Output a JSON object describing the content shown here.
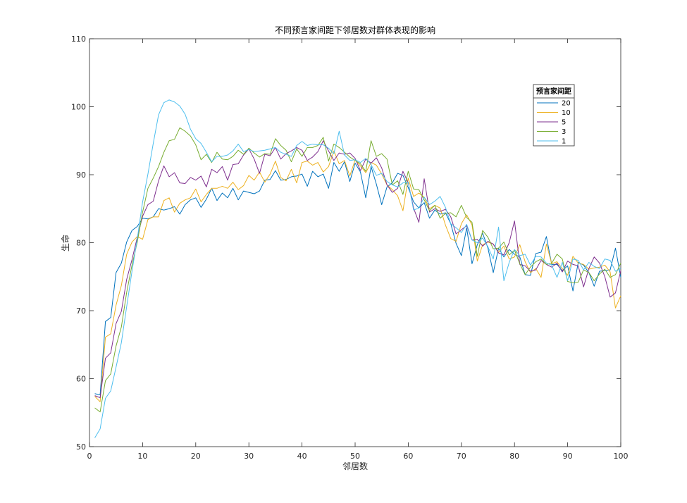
{
  "chart_data": {
    "type": "line",
    "title": "不同预言家间距下邻居数对群体表现的影响",
    "xlabel": "邻居数",
    "ylabel": "生命",
    "xlim": [
      0,
      100
    ],
    "ylim": [
      50,
      110
    ],
    "xticks": [
      0,
      10,
      20,
      30,
      40,
      50,
      60,
      70,
      80,
      90,
      100
    ],
    "yticks": [
      50,
      60,
      70,
      80,
      90,
      100,
      110
    ],
    "grid": false,
    "legend": {
      "title": "预言家间距",
      "placement": "top-right"
    },
    "series_x_start": 1,
    "series": [
      {
        "name": "20",
        "color": "#0072BD",
        "values": [
          57.8,
          57.6,
          68.4,
          69.0,
          75.6,
          77.0,
          80.1,
          81.8,
          82.4,
          83.6,
          83.5,
          83.8,
          85.0,
          84.8,
          85.0,
          85.3,
          84.2,
          85.6,
          86.3,
          86.6,
          85.2,
          86.4,
          88.0,
          86.2,
          87.3,
          86.6,
          88.0,
          86.3,
          87.6,
          87.4,
          87.2,
          87.6,
          89.2,
          89.3,
          90.6,
          89.2,
          89.3,
          89.7,
          89.8,
          90.1,
          88.3,
          90.5,
          89.7,
          90.1,
          88.0,
          91.8,
          90.5,
          91.9,
          89.0,
          91.7,
          90.4,
          86.6,
          91.2,
          88.6,
          85.6,
          88.2,
          88.8,
          90.2,
          89.9,
          88.1,
          86.0,
          85.1,
          85.9,
          83.6,
          84.8,
          84.2,
          84.4,
          82.8,
          79.9,
          78.1,
          82.2,
          76.9,
          79.7,
          81.4,
          79.2,
          75.6,
          79.2,
          77.9,
          79.0,
          78.3,
          77.9,
          75.3,
          75.2,
          78.4,
          78.6,
          80.9,
          76.8,
          76.8,
          75.9,
          76.6,
          72.9,
          77.1,
          76.7,
          75.6,
          73.6,
          75.8,
          75.9,
          76.0,
          79.2,
          74.9
        ]
      },
      {
        "name": "10",
        "color": "#EDB120",
        "values": [
          57.4,
          56.6,
          66.1,
          66.6,
          70.8,
          73.7,
          78.3,
          80.1,
          80.9,
          80.5,
          83.4,
          83.8,
          83.8,
          86.2,
          86.6,
          84.5,
          85.8,
          86.3,
          86.6,
          87.9,
          86.0,
          87.1,
          88.0,
          88.0,
          88.3,
          88.0,
          88.9,
          87.8,
          88.4,
          89.9,
          89.2,
          90.4,
          88.9,
          90.1,
          92.0,
          89.6,
          89.1,
          90.8,
          88.8,
          91.8,
          92.0,
          91.4,
          91.8,
          90.4,
          91.2,
          93.5,
          91.6,
          92.1,
          89.8,
          92.2,
          91.3,
          90.3,
          91.8,
          91.4,
          90.1,
          88.5,
          87.8,
          86.9,
          84.7,
          89.5,
          86.8,
          87.3,
          86.7,
          85.0,
          85.5,
          85.1,
          82.6,
          80.6,
          80.2,
          82.8,
          84.1,
          82.6,
          77.3,
          79.7,
          80.1,
          79.8,
          78.6,
          79.5,
          77.6,
          77.9,
          79.7,
          77.2,
          75.6,
          76.2,
          74.9,
          79.8,
          76.9,
          77.2,
          76.2,
          75.2,
          78.0,
          77.0,
          76.8,
          76.1,
          76.3,
          76.4,
          76.7,
          75.7,
          70.4,
          72.2
        ]
      },
      {
        "name": "5",
        "color": "#7E2F8E",
        "values": [
          57.5,
          57.2,
          63.0,
          63.8,
          68.1,
          69.9,
          74.6,
          77.5,
          80.8,
          83.9,
          85.6,
          86.1,
          89.1,
          91.3,
          89.7,
          90.3,
          88.8,
          88.7,
          89.6,
          89.2,
          89.8,
          88.2,
          90.8,
          90.3,
          91.2,
          89.2,
          91.5,
          91.6,
          92.9,
          93.8,
          92.3,
          90.2,
          93.0,
          92.8,
          94.0,
          92.3,
          93.1,
          93.5,
          94.0,
          93.6,
          92.1,
          92.6,
          93.4,
          95.0,
          93.5,
          92.1,
          93.2,
          93.0,
          93.2,
          92.4,
          90.6,
          92.3,
          91.7,
          92.5,
          91.0,
          88.5,
          87.4,
          88.0,
          90.5,
          88.8,
          85.1,
          83.0,
          89.4,
          84.5,
          85.0,
          84.6,
          84.9,
          83.8,
          81.3,
          81.9,
          82.5,
          80.4,
          80.5,
          79.5,
          80.2,
          79.8,
          78.5,
          78.2,
          80.0,
          83.2,
          76.8,
          76.6,
          75.8,
          76.0,
          77.4,
          76.8,
          76.4,
          77.0,
          75.7,
          77.3,
          76.8,
          76.6,
          73.5,
          76.2,
          77.9,
          77.0,
          75.0,
          72.0,
          72.6,
          75.9
        ]
      },
      {
        "name": "3",
        "color": "#77AC30",
        "values": [
          55.7,
          55.1,
          59.7,
          60.7,
          64.8,
          67.6,
          72.7,
          76.7,
          80.1,
          84.5,
          88.0,
          89.5,
          91.2,
          93.3,
          95.0,
          95.2,
          96.9,
          96.4,
          95.7,
          94.4,
          92.2,
          93.0,
          91.8,
          93.3,
          92.3,
          92.2,
          92.7,
          93.6,
          93.0,
          93.9,
          93.2,
          92.6,
          93.1,
          93.0,
          95.3,
          94.3,
          93.6,
          91.9,
          93.8,
          92.7,
          94.0,
          94.0,
          94.3,
          95.5,
          92.0,
          94.5,
          94.0,
          93.3,
          92.6,
          92.1,
          91.6,
          90.5,
          95.0,
          92.7,
          93.1,
          92.3,
          88.5,
          89.1,
          87.1,
          90.5,
          87.9,
          87.8,
          86.3,
          84.7,
          85.5,
          83.6,
          84.3,
          84.4,
          83.8,
          85.5,
          83.7,
          83.0,
          78.0,
          81.8,
          80.8,
          79.1,
          79.2,
          80.1,
          78.2,
          78.9,
          76.9,
          75.3,
          76.4,
          77.2,
          77.6,
          76.8,
          77.0,
          78.3,
          77.6,
          74.3,
          74.1,
          74.2,
          76.0,
          75.6,
          74.4,
          75.4,
          76.1,
          74.9,
          75.3,
          77.0
        ]
      },
      {
        "name": "1",
        "color": "#4DBEEE",
        "values": [
          51.3,
          52.6,
          57.1,
          58.2,
          61.7,
          65.3,
          70.6,
          75.8,
          80.6,
          86.0,
          90.1,
          94.6,
          98.8,
          100.6,
          101.0,
          100.7,
          100.1,
          98.9,
          96.7,
          95.3,
          94.6,
          93.3,
          91.9,
          92.7,
          92.7,
          92.9,
          93.5,
          94.5,
          93.4,
          93.7,
          93.4,
          93.5,
          93.6,
          93.8,
          94.0,
          93.3,
          93.0,
          92.7,
          94.3,
          94.9,
          94.3,
          94.5,
          94.4,
          94.4,
          93.9,
          93.1,
          96.4,
          92.9,
          92.1,
          92.2,
          91.8,
          92.4,
          91.5,
          89.9,
          90.2,
          89.0,
          88.5,
          88.2,
          88.8,
          88.9,
          84.8,
          85.1,
          86.7,
          85.6,
          86.1,
          86.8,
          85.2,
          82.8,
          82.2,
          81.5,
          82.7,
          80.4,
          80.0,
          80.7,
          79.4,
          77.6,
          82.3,
          74.4,
          77.1,
          79.0,
          78.1,
          78.3,
          76.7,
          78.0,
          77.9,
          77.0,
          76.7,
          74.9,
          77.1,
          74.4,
          77.6,
          77.4,
          76.0,
          77.1,
          76.5,
          76.2,
          77.6,
          77.4,
          75.8,
          76.2
        ]
      }
    ]
  }
}
